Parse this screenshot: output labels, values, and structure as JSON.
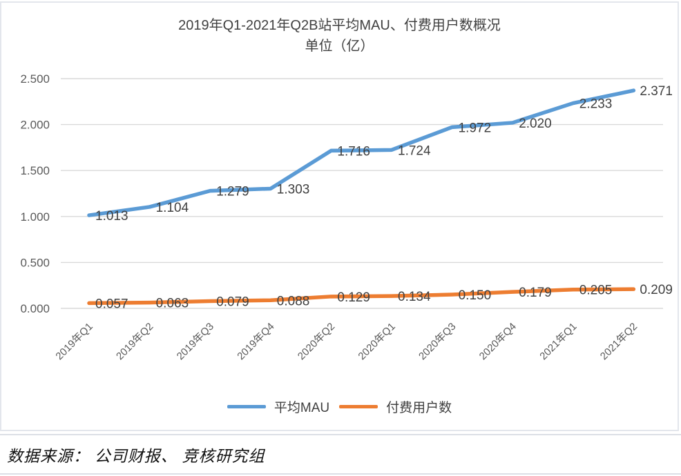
{
  "chart_data": {
    "type": "line",
    "title": "2019年Q1-2021年Q2B站平均MAU、付费用户数概况",
    "subtitle": "单位（亿）",
    "categories": [
      "2019年Q1",
      "2019年Q2",
      "2019年Q3",
      "2019年Q4",
      "2020年Q2",
      "2020年Q1",
      "2020年Q3",
      "2020年Q4",
      "2021年Q1",
      "2021年Q2"
    ],
    "series": [
      {
        "name": "平均MAU",
        "color": "#5B9BD5",
        "values": [
          1.013,
          1.104,
          1.279,
          1.303,
          1.716,
          1.724,
          1.972,
          2.02,
          2.233,
          2.371
        ]
      },
      {
        "name": "付费用户数",
        "color": "#ED7D31",
        "values": [
          0.057,
          0.063,
          0.079,
          0.088,
          0.129,
          0.134,
          0.15,
          0.179,
          0.205,
          0.209
        ]
      }
    ],
    "y_axis": {
      "min": 0,
      "max": 2.5,
      "step": 0.5,
      "tick_labels": [
        "0.000",
        "0.500",
        "1.000",
        "1.500",
        "2.000",
        "2.500"
      ]
    },
    "label_format": "0.000",
    "grid": true,
    "legend_position": "bottom",
    "gridline_color": "#D9D9D9",
    "axis_text_color": "#595959",
    "data_label_color": "#404040"
  },
  "footer": {
    "source_text": "数据来源： 公司财报、 竞核研究组"
  }
}
